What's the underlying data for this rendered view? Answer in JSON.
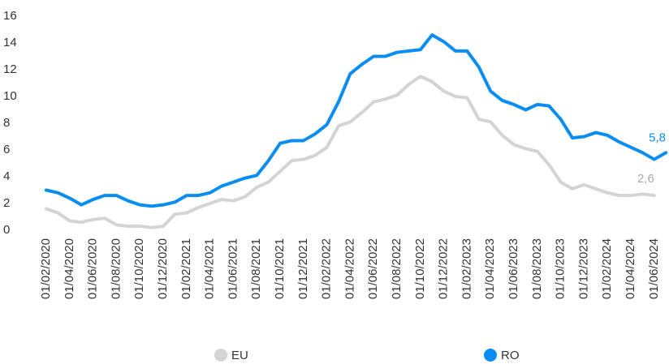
{
  "chart_data": {
    "type": "line",
    "categories": [
      "01/02/2020",
      null,
      "01/04/2020",
      null,
      "01/06/2020",
      null,
      "01/08/2020",
      null,
      "01/10/2020",
      null,
      "01/12/2020",
      null,
      "01/02/2021",
      null,
      "01/04/2021",
      null,
      "01/06/2021",
      null,
      "01/08/2021",
      null,
      "01/10/2021",
      null,
      "01/12/2021",
      null,
      "01/02/2022",
      null,
      "01/04/2022",
      null,
      "01/06/2022",
      null,
      "01/08/2022",
      null,
      "01/10/2022",
      null,
      "01/12/2022",
      null,
      "01/02/2023",
      null,
      "01/04/2023",
      null,
      "01/06/2023",
      null,
      "01/08/2023",
      null,
      "01/10/2023",
      null,
      "01/12/2023",
      null,
      "01/02/2024",
      null,
      "01/04/2024",
      null,
      "01/06/2024",
      null
    ],
    "series": [
      {
        "name": "EU",
        "color": "#d4d4d4",
        "values": [
          1.6,
          1.3,
          0.7,
          0.6,
          0.8,
          0.9,
          0.4,
          0.3,
          0.3,
          0.2,
          0.3,
          1.2,
          1.3,
          1.7,
          2.0,
          2.3,
          2.2,
          2.5,
          3.2,
          3.6,
          4.4,
          5.2,
          5.3,
          5.6,
          6.2,
          7.8,
          8.1,
          8.8,
          9.6,
          9.8,
          10.1,
          10.9,
          11.5,
          11.1,
          10.4,
          10.0,
          9.9,
          8.3,
          8.1,
          7.1,
          6.4,
          6.1,
          5.9,
          4.9,
          3.6,
          3.1,
          3.4,
          3.1,
          2.8,
          2.6,
          2.6,
          2.7,
          2.6,
          null
        ],
        "value_labels": [
          null,
          null,
          null,
          null,
          null,
          null,
          null,
          null,
          null,
          null,
          null,
          null,
          null,
          null,
          null,
          null,
          null,
          null,
          null,
          null,
          null,
          null,
          null,
          null,
          null,
          null,
          null,
          null,
          null,
          null,
          null,
          null,
          null,
          null,
          null,
          null,
          null,
          null,
          null,
          null,
          null,
          null,
          null,
          null,
          null,
          null,
          null,
          null,
          null,
          null,
          null,
          null,
          "2,6",
          null
        ]
      },
      {
        "name": "RO",
        "color": "#0a8df2",
        "values": [
          3.0,
          2.8,
          2.4,
          1.9,
          2.3,
          2.6,
          2.6,
          2.2,
          1.9,
          1.8,
          1.9,
          2.1,
          2.6,
          2.6,
          2.8,
          3.3,
          3.6,
          3.9,
          4.1,
          5.2,
          6.5,
          6.7,
          6.7,
          7.2,
          7.9,
          9.6,
          11.7,
          12.4,
          13.0,
          13.0,
          13.3,
          13.4,
          13.5,
          14.6,
          14.1,
          13.4,
          13.4,
          12.2,
          10.4,
          9.7,
          9.4,
          9.0,
          9.4,
          9.3,
          8.3,
          6.9,
          7.0,
          7.3,
          7.1,
          6.6,
          6.2,
          5.8,
          5.3,
          5.8
        ],
        "value_labels": [
          null,
          null,
          null,
          null,
          null,
          null,
          null,
          null,
          null,
          null,
          null,
          null,
          null,
          null,
          null,
          null,
          null,
          null,
          null,
          null,
          null,
          null,
          null,
          null,
          null,
          null,
          null,
          null,
          null,
          null,
          null,
          null,
          null,
          null,
          null,
          null,
          null,
          null,
          null,
          null,
          null,
          null,
          null,
          null,
          null,
          null,
          null,
          null,
          null,
          null,
          null,
          null,
          null,
          "5,8"
        ]
      }
    ],
    "ylim": [
      0,
      16
    ],
    "yticks": [
      0,
      2,
      4,
      6,
      8,
      10,
      12,
      14,
      16
    ],
    "grid": false,
    "legend": "bottom"
  }
}
